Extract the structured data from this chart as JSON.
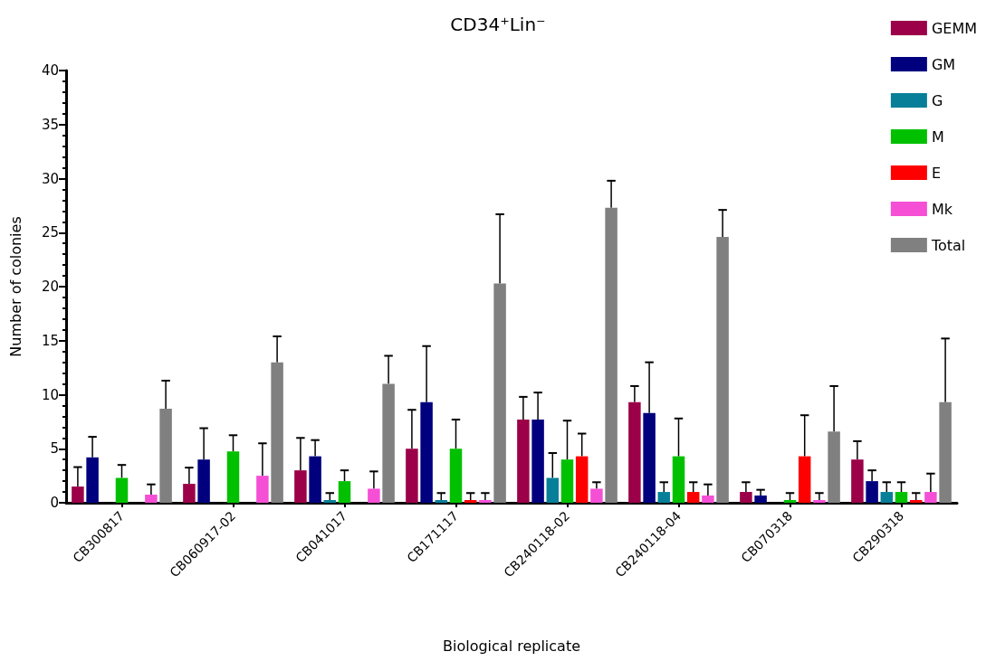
{
  "chart_data": {
    "type": "bar",
    "title": "CD34⁺Lin⁻",
    "xlabel": "Biological replicate",
    "ylabel": "Number of colonies",
    "categories": [
      "CB300817",
      "CB060917-02",
      "CB041017",
      "CB171117",
      "CB240118-02",
      "CB240118-04",
      "CB070318",
      "CB290318"
    ],
    "series": [
      {
        "name": "GEMM",
        "color": "#9b0048",
        "values": [
          1.5,
          1.75,
          3.0,
          5.0,
          7.7,
          9.3,
          1.0,
          4.0
        ],
        "errors": [
          [
            1.5,
            3.3
          ],
          [
            1.75,
            3.25
          ],
          [
            3.0,
            6.0
          ],
          [
            5.0,
            8.6
          ],
          [
            7.7,
            9.8
          ],
          [
            9.3,
            10.8
          ],
          [
            1.0,
            1.9
          ],
          [
            4.0,
            5.7
          ]
        ]
      },
      {
        "name": "GM",
        "color": "#00007f",
        "values": [
          4.2,
          4.0,
          4.3,
          9.3,
          7.7,
          8.3,
          0.67,
          2.0
        ],
        "errors": [
          [
            4.2,
            6.1
          ],
          [
            4.0,
            6.9
          ],
          [
            4.3,
            5.8
          ],
          [
            9.3,
            14.5
          ],
          [
            7.7,
            10.2
          ],
          [
            8.3,
            13.0
          ],
          [
            0.67,
            1.2
          ],
          [
            2.0,
            3.0
          ]
        ]
      },
      {
        "name": "G",
        "color": "#077f99",
        "values": [
          0,
          0,
          0.25,
          0.25,
          2.3,
          1.0,
          0,
          1.0
        ],
        "errors": [
          null,
          null,
          [
            0.25,
            0.9
          ],
          [
            0.25,
            0.9
          ],
          [
            2.3,
            4.6
          ],
          [
            1.0,
            1.9
          ],
          null,
          [
            1.0,
            1.9
          ]
        ]
      },
      {
        "name": "M",
        "color": "#00c000",
        "values": [
          2.3,
          4.75,
          2.0,
          5.0,
          4.0,
          4.3,
          0.25,
          1.0
        ],
        "errors": [
          [
            2.3,
            3.5
          ],
          [
            4.75,
            6.25
          ],
          [
            2.0,
            3.0
          ],
          [
            5.0,
            7.7
          ],
          [
            4.0,
            7.6
          ],
          [
            4.3,
            7.8
          ],
          [
            0.25,
            0.9
          ],
          [
            1.0,
            1.9
          ]
        ]
      },
      {
        "name": "E",
        "color": "#ff0000",
        "values": [
          0,
          0,
          0,
          0.25,
          4.3,
          1.0,
          4.3,
          0.25
        ],
        "errors": [
          null,
          null,
          null,
          [
            0.25,
            0.9
          ],
          [
            4.3,
            6.4
          ],
          [
            1.0,
            1.9
          ],
          [
            4.3,
            8.1
          ],
          [
            0.25,
            0.9
          ]
        ]
      },
      {
        "name": "Mk",
        "color": "#f54fd6",
        "values": [
          0.75,
          2.5,
          1.3,
          0.25,
          1.3,
          0.67,
          0.25,
          1.0
        ],
        "errors": [
          [
            0.75,
            1.7
          ],
          [
            2.5,
            5.5
          ],
          [
            1.3,
            2.9
          ],
          [
            0.25,
            0.9
          ],
          [
            1.3,
            1.9
          ],
          [
            0.67,
            1.7
          ],
          [
            0.25,
            0.9
          ],
          [
            1.0,
            2.7
          ]
        ]
      },
      {
        "name": "Total",
        "color": "#808080",
        "values": [
          8.7,
          13.0,
          11.0,
          20.3,
          27.3,
          24.6,
          6.6,
          9.3
        ],
        "errors": [
          [
            8.7,
            11.3
          ],
          [
            13.0,
            15.4
          ],
          [
            11.0,
            13.6
          ],
          [
            20.3,
            26.7
          ],
          [
            27.3,
            29.8
          ],
          [
            24.6,
            27.1
          ],
          [
            6.6,
            10.8
          ],
          [
            9.3,
            15.2
          ]
        ]
      }
    ],
    "ylim": [
      0,
      40
    ],
    "yticks": [
      0,
      5,
      10,
      15,
      20,
      25,
      30,
      35,
      40
    ],
    "grid": false,
    "legend": "top right"
  }
}
